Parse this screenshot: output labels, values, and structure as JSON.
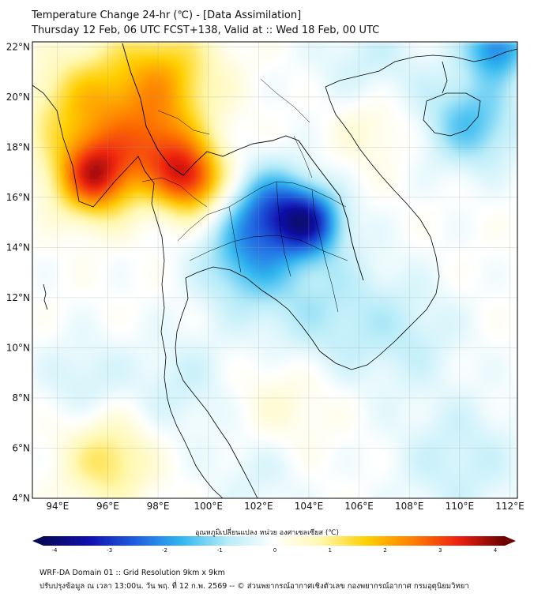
{
  "title": {
    "line1": "Temperature Change 24-hr (℃) - [Data Assimilation]",
    "line2": "Thursday 12 Feb, 06 UTC FCST+138, Valid at :: Wed 18 Feb, 00 UTC"
  },
  "map": {
    "lat_range": [
      4,
      22.2
    ],
    "lon_range": [
      93,
      112.3
    ],
    "lat_ticks": [
      "22°N",
      "20°N",
      "18°N",
      "16°N",
      "14°N",
      "12°N",
      "10°N",
      "8°N",
      "6°N",
      "4°N"
    ],
    "lat_values": [
      22,
      20,
      18,
      16,
      14,
      12,
      10,
      8,
      6,
      4
    ],
    "lon_ticks": [
      "94°E",
      "96°E",
      "98°E",
      "100°E",
      "102°E",
      "104°E",
      "106°E",
      "108°E",
      "110°E",
      "112°E"
    ],
    "lon_values": [
      94,
      96,
      98,
      100,
      102,
      104,
      106,
      108,
      110,
      112
    ],
    "field": [
      {
        "lon": 95.5,
        "lat": 16.8,
        "value": 3.0,
        "spread": 1.1
      },
      {
        "lon": 95.2,
        "lat": 19.5,
        "value": 1.6,
        "spread": 1.6
      },
      {
        "lon": 98.2,
        "lat": 20.8,
        "value": 1.7,
        "spread": 1.5
      },
      {
        "lon": 99.3,
        "lat": 16.7,
        "value": 2.7,
        "spread": 1.0
      },
      {
        "lon": 98.0,
        "lat": 18.0,
        "value": 1.8,
        "spread": 1.2
      },
      {
        "lon": 102.5,
        "lat": 15.5,
        "value": -2.0,
        "spread": 1.2
      },
      {
        "lon": 104.0,
        "lat": 15.0,
        "value": -2.4,
        "spread": 0.9
      },
      {
        "lon": 101.5,
        "lat": 13.5,
        "value": -1.3,
        "spread": 1.3
      },
      {
        "lon": 110.5,
        "lat": 19.0,
        "value": -1.4,
        "spread": 1.3
      },
      {
        "lon": 111.5,
        "lat": 22.0,
        "value": -2.0,
        "spread": 0.9
      },
      {
        "lon": 106.5,
        "lat": 21.0,
        "value": -0.6,
        "spread": 1.6
      },
      {
        "lon": 96.0,
        "lat": 5.5,
        "value": 1.2,
        "spread": 1.2
      },
      {
        "lon": 104.5,
        "lat": 11.5,
        "value": -0.8,
        "spread": 2.0
      },
      {
        "lon": 99.0,
        "lat": 8.5,
        "value": -0.5,
        "spread": 1.5
      },
      {
        "lon": 103.0,
        "lat": 8.0,
        "value": 0.5,
        "spread": 1.5
      },
      {
        "lon": 110.0,
        "lat": 5.5,
        "value": -0.6,
        "spread": 1.8
      },
      {
        "lon": 108.0,
        "lat": 10.5,
        "value": -0.5,
        "spread": 1.5
      },
      {
        "lon": 95.0,
        "lat": 8.8,
        "value": -0.5,
        "spread": 1.2
      },
      {
        "lon": 106.5,
        "lat": 19.0,
        "value": 0.6,
        "spread": 1.2
      },
      {
        "lon": 102.0,
        "lat": 5.0,
        "value": -0.4,
        "spread": 1.3
      }
    ]
  },
  "colorbar": {
    "title": "อุณหภูมิเปลี่ยนแปลง หน่วย องศาเซลเซียส (℃)",
    "min": -4,
    "max": 4,
    "tick_labels": [
      "-4",
      "-3",
      "-2",
      "-1",
      "0",
      "1",
      "2",
      "3",
      "4"
    ],
    "tick_values": [
      -4,
      -3,
      -2,
      -1,
      0,
      1,
      2,
      3,
      4
    ],
    "stops": [
      "#08085a",
      "#1010b0",
      "#2060e0",
      "#30b8f0",
      "#b8ecf8",
      "#ffffff",
      "#fff8b0",
      "#ffd000",
      "#ff8000",
      "#ee2010",
      "#6a0000"
    ]
  },
  "footer": {
    "line1": "WRF-DA Domain 01 :: Grid Resolution 9km x 9km",
    "line2": "ปรับปรุงข้อมูล ณ เวลา 13:00น. วัน พฤ. ที่ 12 ก.พ. 2569 -- © ส่วนพยากรณ์อากาศเชิงตัวเลข กองพยากรณ์อากาศ กรมอุตุนิยมวิทยา"
  }
}
